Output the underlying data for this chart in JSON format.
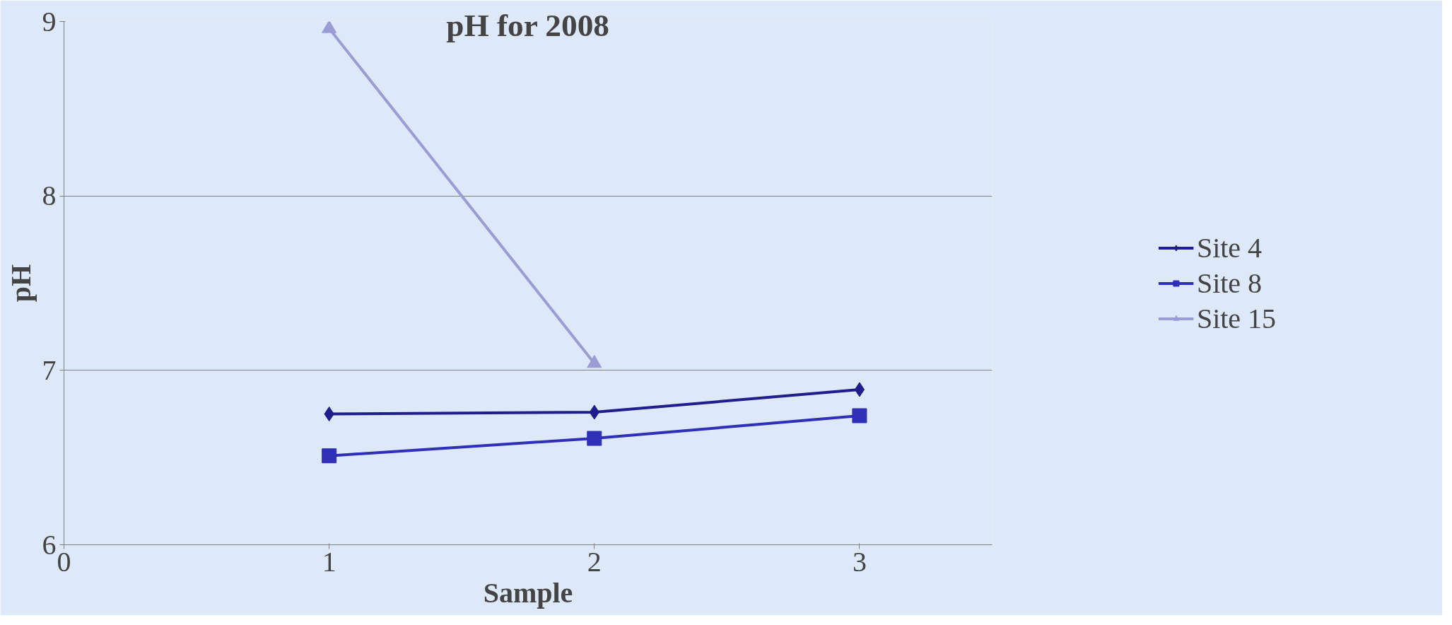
{
  "chart_data": {
    "type": "line",
    "title": "pH for 2008",
    "xlabel": "Sample",
    "ylabel": "pH",
    "x": [
      1,
      2,
      3
    ],
    "series": [
      {
        "name": "Site 4",
        "color": "#1e1e8c",
        "marker": "diamond",
        "values": [
          6.75,
          6.76,
          6.89
        ]
      },
      {
        "name": "Site 8",
        "color": "#2f2fb8",
        "marker": "square",
        "values": [
          6.51,
          6.61,
          6.74
        ]
      },
      {
        "name": "Site 15",
        "color": "#9c9cd4",
        "marker": "triangle",
        "values": [
          8.96,
          7.04,
          null
        ]
      }
    ],
    "xlim": [
      0,
      3.5
    ],
    "xticks": [
      0,
      1,
      2,
      3
    ],
    "ylim": [
      6,
      9
    ],
    "yticks": [
      6,
      7,
      8,
      9
    ],
    "grid": "y",
    "legend": "right"
  }
}
